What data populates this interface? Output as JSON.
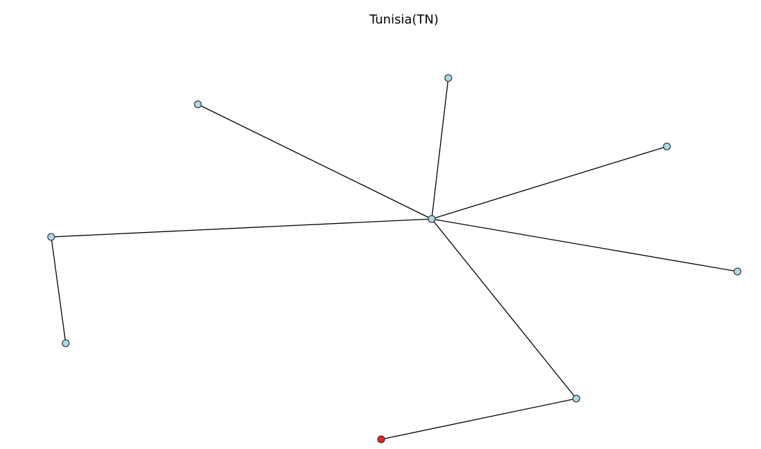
{
  "title": "Tunisia(TN)",
  "colors": {
    "node_fill": "#add8e6",
    "highlight_fill": "#ee2222",
    "node_stroke": "#222222",
    "edge_stroke": "#000000",
    "background": "#ffffff"
  },
  "graph": {
    "nodes": [
      {
        "id": "hub"
      },
      {
        "id": "n-top"
      },
      {
        "id": "n-upper-left"
      },
      {
        "id": "n-upper-right"
      },
      {
        "id": "n-left"
      },
      {
        "id": "n-lower-left"
      },
      {
        "id": "n-right"
      },
      {
        "id": "n-lower-right"
      },
      {
        "id": "n-bottom",
        "highlight": true
      }
    ],
    "edges": [
      {
        "source": "hub",
        "target": "n-top"
      },
      {
        "source": "hub",
        "target": "n-upper-left"
      },
      {
        "source": "hub",
        "target": "n-upper-right"
      },
      {
        "source": "hub",
        "target": "n-left"
      },
      {
        "source": "hub",
        "target": "n-right"
      },
      {
        "source": "hub",
        "target": "n-lower-right"
      },
      {
        "source": "n-left",
        "target": "n-lower-left"
      },
      {
        "source": "n-lower-right",
        "target": "n-bottom"
      }
    ]
  }
}
